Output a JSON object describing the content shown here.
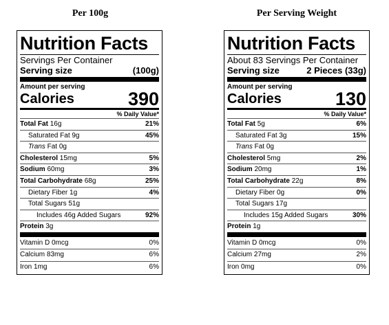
{
  "headers": {
    "left": "Per 100g",
    "right": "Per Serving Weight"
  },
  "labels": [
    {
      "title": "Nutrition Facts",
      "servings": "Servings Per Container",
      "serving_size_label": "Serving size",
      "serving_size_value": "(100g)",
      "amount_per_serving": "Amount per serving",
      "calories_label": "Calories",
      "calories_value": "390",
      "dv_header": "% Daily Value*",
      "total_fat": {
        "label": "Total Fat",
        "amount": "16g",
        "dv": "21%"
      },
      "sat_fat": {
        "label": "Saturated Fat",
        "amount": "9g",
        "dv": "45%"
      },
      "trans_fat": {
        "label_italic": "Trans",
        "label_rest": "Fat",
        "amount": "0g"
      },
      "cholesterol": {
        "label": "Cholesterol",
        "amount": "15mg",
        "dv": "5%"
      },
      "sodium": {
        "label": "Sodium",
        "amount": "60mg",
        "dv": "3%"
      },
      "total_carb": {
        "label": "Total Carbohydrate",
        "amount": "68g",
        "dv": "25%"
      },
      "fiber": {
        "label": "Dietary Fiber",
        "amount": "1g",
        "dv": "4%"
      },
      "sugars": {
        "label": "Total Sugars",
        "amount": "51g"
      },
      "added_sugars": {
        "prefix": "Includes",
        "amount": "46g",
        "suffix": "Added Sugars",
        "dv": "92%"
      },
      "protein": {
        "label": "Protein",
        "amount": "3g"
      },
      "vitamins": [
        {
          "label": "Vitamin D 0mcg",
          "dv": "0%"
        },
        {
          "label": "Calcium 83mg",
          "dv": "6%"
        },
        {
          "label": "Iron 1mg",
          "dv": "6%"
        }
      ]
    },
    {
      "title": "Nutrition Facts",
      "servings": "About 83 Servings Per Container",
      "serving_size_label": "Serving size",
      "serving_size_value": "2 Pieces (33g)",
      "amount_per_serving": "Amount per serving",
      "calories_label": "Calories",
      "calories_value": "130",
      "dv_header": "% Daily Value*",
      "total_fat": {
        "label": "Total Fat",
        "amount": "5g",
        "dv": "6%"
      },
      "sat_fat": {
        "label": "Saturated Fat",
        "amount": "3g",
        "dv": "15%"
      },
      "trans_fat": {
        "label_italic": "Trans",
        "label_rest": "Fat",
        "amount": "0g"
      },
      "cholesterol": {
        "label": "Cholesterol",
        "amount": "5mg",
        "dv": "2%"
      },
      "sodium": {
        "label": "Sodium",
        "amount": "20mg",
        "dv": "1%"
      },
      "total_carb": {
        "label": "Total Carbohydrate",
        "amount": "22g",
        "dv": "8%"
      },
      "fiber": {
        "label": "Dietary Fiber",
        "amount": "0g",
        "dv": "0%"
      },
      "sugars": {
        "label": "Total Sugars",
        "amount": "17g"
      },
      "added_sugars": {
        "prefix": "Includes",
        "amount": "15g",
        "suffix": "Added Sugars",
        "dv": "30%"
      },
      "protein": {
        "label": "Protein",
        "amount": "1g"
      },
      "vitamins": [
        {
          "label": "Vitamin D 0mcg",
          "dv": "0%"
        },
        {
          "label": "Calcium 27mg",
          "dv": "2%"
        },
        {
          "label": "Iron 0mg",
          "dv": "0%"
        }
      ]
    }
  ]
}
